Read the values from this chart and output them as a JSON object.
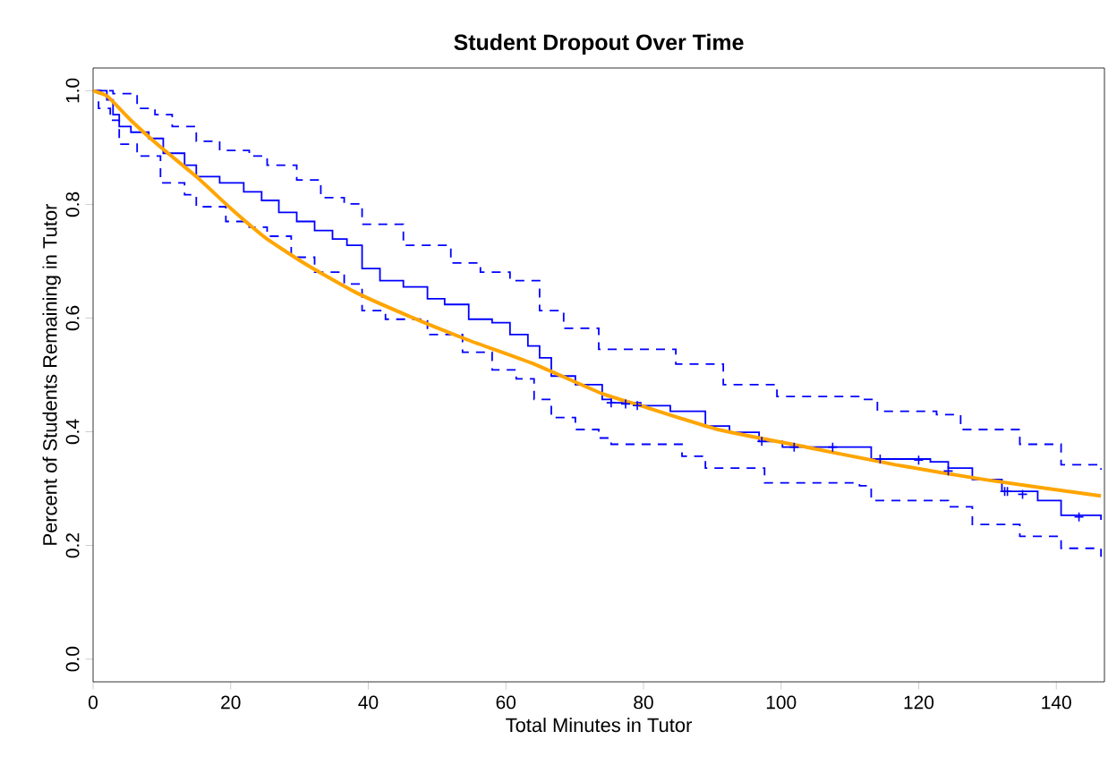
{
  "chart_data": {
    "type": "step",
    "title": "Student Dropout Over Time",
    "xlabel": "Total Minutes in Tutor",
    "ylabel": "Percent of Students Remaining in Tutor",
    "xlim": [
      0,
      147
    ],
    "ylim": [
      -0.04,
      1.04
    ],
    "xticks": [
      0,
      20,
      40,
      60,
      80,
      100,
      120,
      140
    ],
    "yticks": [
      {
        "value": 0,
        "label": "0.0"
      },
      {
        "value": 0.2,
        "label": "0.2"
      },
      {
        "value": 0.4,
        "label": "0.4"
      },
      {
        "value": 0.6,
        "label": "0.6"
      },
      {
        "value": 0.8,
        "label": "0.8"
      },
      {
        "value": 1,
        "label": "1.0"
      }
    ],
    "grid": false,
    "series": [
      {
        "color": "#0000ff",
        "line_style": "solid",
        "x": [
          0,
          2,
          2.9,
          3.8,
          5.5,
          8.1,
          10.2,
          13.3,
          15,
          18.4,
          21.9,
          24.5,
          27,
          29.6,
          32.2,
          34.8,
          36.9,
          39.1,
          41.7,
          45.1,
          48.6,
          51.1,
          54.6,
          58,
          60.6,
          63.2,
          64.9,
          66.6,
          70.1,
          74,
          75.3,
          79.6,
          83.9,
          89,
          92.5,
          96.8,
          100.2,
          113.1,
          121.7,
          124.3,
          127.8,
          132.1,
          137.3,
          140.7,
          146.5
        ],
        "values": [
          1.0,
          0.984,
          0.958,
          0.937,
          0.927,
          0.916,
          0.89,
          0.869,
          0.849,
          0.838,
          0.822,
          0.807,
          0.786,
          0.77,
          0.754,
          0.739,
          0.728,
          0.687,
          0.666,
          0.655,
          0.634,
          0.624,
          0.598,
          0.592,
          0.571,
          0.551,
          0.53,
          0.498,
          0.483,
          0.457,
          0.451,
          0.446,
          0.436,
          0.41,
          0.399,
          0.383,
          0.373,
          0.352,
          0.347,
          0.336,
          0.316,
          0.295,
          0.279,
          0.253,
          0.245
        ]
      },
      {
        "type": "step",
        "color": "#0000ff",
        "line_style": "dashed",
        "x": [
          0,
          2.9,
          6.4,
          9,
          11.5,
          15,
          18.4,
          22.7,
          25.3,
          29.6,
          33.1,
          36.5,
          39.1,
          45.1,
          52,
          56.3,
          60.6,
          64.9,
          68.4,
          73.5,
          84.7,
          91.6,
          99.4,
          111.4,
          114,
          122.6,
          126.1,
          134.7,
          140.7,
          146.5
        ],
        "values": [
          1.0,
          0.995,
          0.969,
          0.958,
          0.937,
          0.911,
          0.895,
          0.885,
          0.869,
          0.843,
          0.812,
          0.801,
          0.765,
          0.728,
          0.697,
          0.681,
          0.666,
          0.613,
          0.582,
          0.545,
          0.519,
          0.483,
          0.462,
          0.457,
          0.436,
          0.43,
          0.404,
          0.378,
          0.342,
          0.333
        ]
      },
      {
        "type": "step",
        "color": "#0000ff",
        "line_style": "dashed",
        "x": [
          0,
          0.8,
          2.5,
          3.8,
          6.4,
          9.8,
          13.3,
          15,
          19.3,
          22.7,
          25.3,
          28.8,
          32.2,
          36.5,
          39.1,
          42.5,
          48.6,
          53.7,
          58,
          61.5,
          64.1,
          66.6,
          70.1,
          73.5,
          75.3,
          85.6,
          89,
          97.6,
          111.4,
          113.1,
          124.3,
          127.8,
          134.7,
          140.7,
          146.5
        ],
        "values": [
          1.0,
          0.969,
          0.948,
          0.906,
          0.885,
          0.838,
          0.817,
          0.796,
          0.77,
          0.76,
          0.744,
          0.707,
          0.681,
          0.66,
          0.613,
          0.598,
          0.571,
          0.54,
          0.509,
          0.493,
          0.457,
          0.425,
          0.404,
          0.389,
          0.378,
          0.357,
          0.336,
          0.31,
          0.305,
          0.279,
          0.268,
          0.237,
          0.216,
          0.195,
          0.18
        ]
      },
      {
        "type": "scatter",
        "color": "#0000ff",
        "marker": "cross",
        "x": [
          75.3,
          77.4,
          79.1,
          97.2,
          101.9,
          107.5,
          114.4,
          120,
          124.3,
          132.5,
          132.9,
          135.1,
          143.3
        ],
        "values": [
          0.451,
          0.449,
          0.446,
          0.383,
          0.373,
          0.373,
          0.352,
          0.35,
          0.331,
          0.295,
          0.295,
          0.29,
          0.25
        ]
      },
      {
        "type": "line",
        "color": "#ffa500",
        "line_style": "solid",
        "x": [
          0,
          2.1,
          5.5,
          9.8,
          15,
          20.2,
          25.3,
          31.3,
          38.2,
          46,
          54.6,
          64.1,
          74,
          79.6,
          90.8,
          103.7,
          116.6,
          129.5,
          146.5
        ],
        "values": [
          1.0,
          0.99,
          0.948,
          0.901,
          0.849,
          0.791,
          0.739,
          0.692,
          0.645,
          0.603,
          0.561,
          0.519,
          0.467,
          0.446,
          0.404,
          0.373,
          0.342,
          0.316,
          0.287
        ]
      }
    ]
  }
}
